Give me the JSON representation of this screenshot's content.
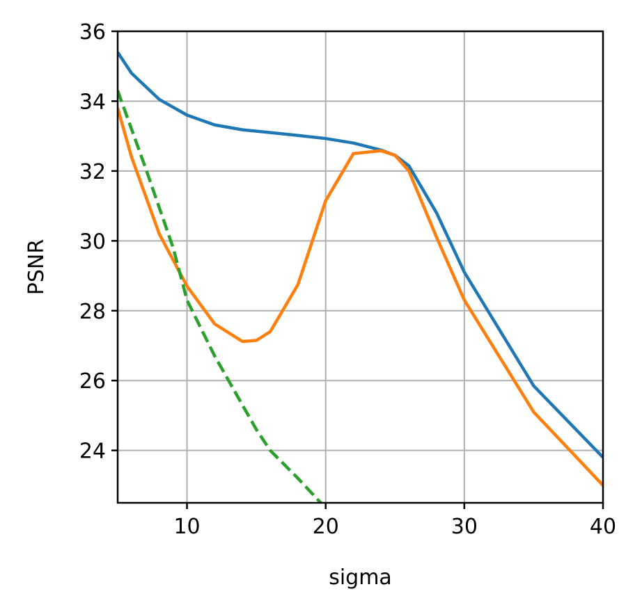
{
  "chart_data": {
    "type": "line",
    "title": "",
    "xlabel": "sigma",
    "ylabel": "PSNR",
    "xlim": [
      5,
      40
    ],
    "ylim": [
      22.5,
      36
    ],
    "xticks": [
      10,
      20,
      30,
      40
    ],
    "yticks": [
      24,
      26,
      28,
      30,
      32,
      34,
      36
    ],
    "xtick_labels": [
      "10",
      "20",
      "30",
      "40"
    ],
    "ytick_labels": [
      "24",
      "26",
      "28",
      "30",
      "32",
      "34",
      "36"
    ],
    "grid": true,
    "legend": null,
    "series": [
      {
        "color": "#1f77b4",
        "dash": "solid",
        "x": [
          5,
          6,
          8,
          10,
          12,
          14,
          16,
          18,
          20,
          22,
          24,
          25,
          26,
          28,
          30,
          35,
          40
        ],
        "y": [
          35.4,
          34.8,
          34.05,
          33.6,
          33.32,
          33.18,
          33.1,
          33.02,
          32.93,
          32.8,
          32.6,
          32.45,
          32.15,
          30.8,
          29.1,
          25.85,
          23.8
        ]
      },
      {
        "color": "#ff7f0e",
        "dash": "solid",
        "x": [
          5,
          6,
          8,
          9,
          10,
          12,
          14,
          15,
          16,
          18,
          20,
          22,
          24,
          25,
          26,
          28,
          30,
          35,
          40
        ],
        "y": [
          33.8,
          32.4,
          30.2,
          29.45,
          28.7,
          27.62,
          27.12,
          27.15,
          27.4,
          28.75,
          31.15,
          32.5,
          32.58,
          32.45,
          32.0,
          30.1,
          28.3,
          25.1,
          23.0
        ]
      },
      {
        "color": "#2ca02c",
        "dash": "dashed",
        "x": [
          5,
          7,
          9,
          10,
          12,
          14,
          15,
          16,
          18,
          20
        ],
        "y": [
          34.3,
          32.1,
          29.8,
          28.3,
          26.7,
          25.3,
          24.6,
          24.0,
          23.2,
          22.35
        ]
      }
    ]
  }
}
